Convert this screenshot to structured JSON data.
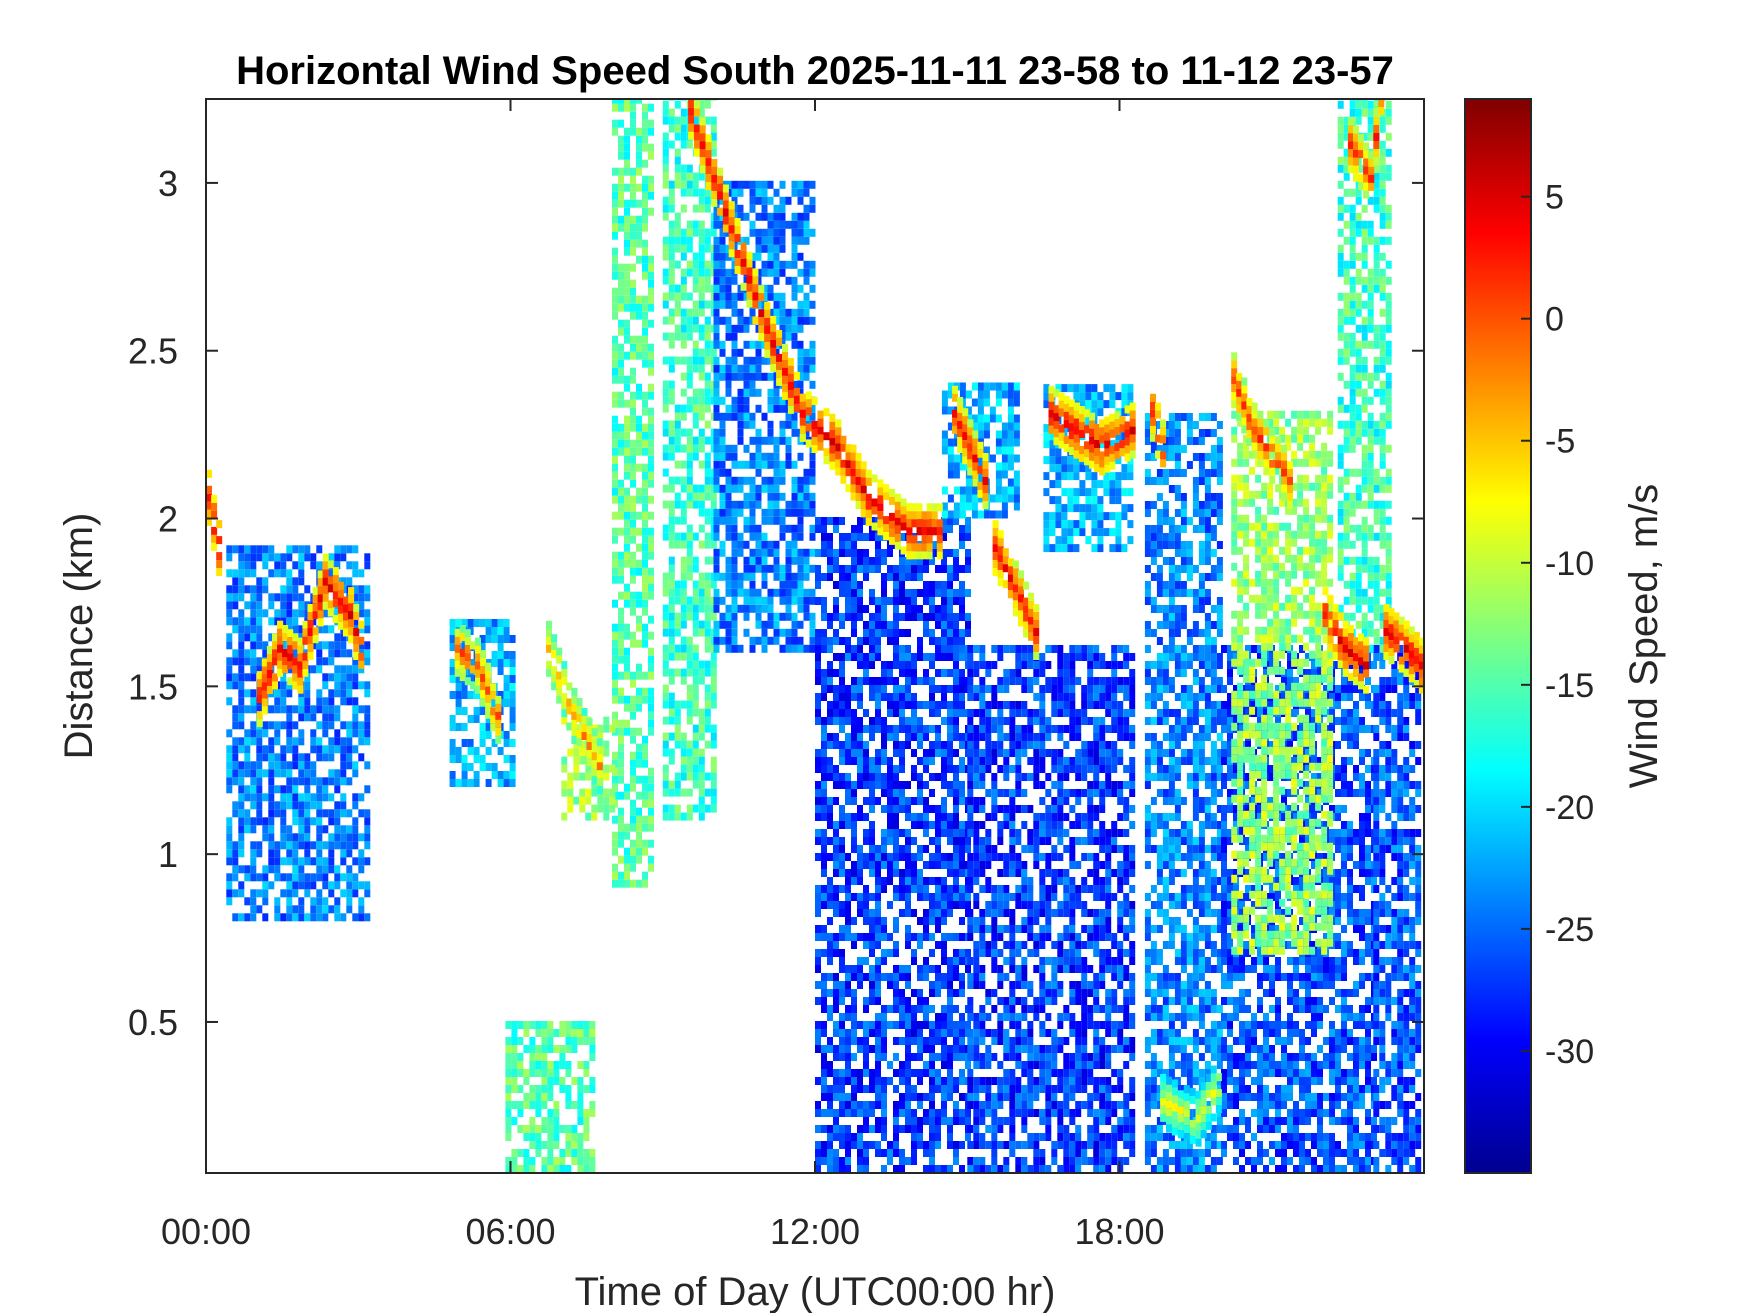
{
  "chart_data": {
    "type": "heatmap",
    "title": "Horizontal Wind Speed South 2025-11-11 23-58 to 11-12 23-57",
    "xlabel": "Time of Day (UTC00:00 hr)",
    "ylabel": "Distance (km)",
    "xlim": [
      0,
      24
    ],
    "ylim": [
      0.05,
      3.25
    ],
    "x_ticks": [
      {
        "value": 0,
        "label": "00:00"
      },
      {
        "value": 6,
        "label": "06:00"
      },
      {
        "value": 12,
        "label": "12:00"
      },
      {
        "value": 18,
        "label": "18:00"
      }
    ],
    "y_ticks": [
      {
        "value": 0.5,
        "label": "0.5"
      },
      {
        "value": 1,
        "label": "1"
      },
      {
        "value": 1.5,
        "label": "1.5"
      },
      {
        "value": 2,
        "label": "2"
      },
      {
        "value": 2.5,
        "label": "2.5"
      },
      {
        "value": 3,
        "label": "3"
      }
    ],
    "colorbar": {
      "label": "Wind Speed, m/s",
      "range": [
        -35,
        9
      ],
      "colormap": "jet",
      "ticks": [
        {
          "value": 5,
          "label": "5"
        },
        {
          "value": 0,
          "label": "0"
        },
        {
          "value": -5,
          "label": "-5"
        },
        {
          "value": -10,
          "label": "-10"
        },
        {
          "value": -15,
          "label": "-15"
        },
        {
          "value": -20,
          "label": "-20"
        },
        {
          "value": -25,
          "label": "-25"
        },
        {
          "value": -30,
          "label": "-30"
        }
      ]
    },
    "features": [
      {
        "x": [
          8.0,
          8.8
        ],
        "y": [
          0.9,
          3.25
        ],
        "v": -15
      },
      {
        "x": [
          9.0,
          10.0
        ],
        "y": [
          1.1,
          3.25
        ],
        "v": -16
      },
      {
        "x": [
          10.0,
          12.0
        ],
        "y": [
          1.6,
          3.0
        ],
        "v": -24
      },
      {
        "x": [
          12.0,
          15.0
        ],
        "y": [
          0.05,
          2.0
        ],
        "v": -27
      },
      {
        "x": [
          15.0,
          18.2
        ],
        "y": [
          0.05,
          1.6
        ],
        "v": -27
      },
      {
        "x": [
          18.5,
          20.0
        ],
        "y": [
          0.05,
          2.3
        ],
        "v": -24
      },
      {
        "x": [
          20.0,
          23.0
        ],
        "y": [
          0.05,
          1.6
        ],
        "v": -26
      },
      {
        "x": [
          20.2,
          22.2
        ],
        "y": [
          0.7,
          2.3
        ],
        "v": -12
      },
      {
        "x": [
          23.0,
          23.9
        ],
        "y": [
          0.05,
          1.6
        ],
        "v": -26
      },
      {
        "x": [
          22.3,
          23.3
        ],
        "y": [
          1.6,
          3.25
        ],
        "v": -16
      },
      {
        "x": [
          0.4,
          3.2
        ],
        "y": [
          0.8,
          1.9
        ],
        "v": -24
      },
      {
        "x": [
          4.8,
          6.0
        ],
        "y": [
          1.2,
          1.7
        ],
        "v": -22
      },
      {
        "x": [
          5.9,
          7.6
        ],
        "y": [
          0.05,
          0.5
        ],
        "v": -15
      },
      {
        "x": [
          7.0,
          8.0
        ],
        "y": [
          1.1,
          1.4
        ],
        "v": -12
      },
      {
        "x": [
          16.5,
          18.2
        ],
        "y": [
          1.9,
          2.4
        ],
        "v": -22
      },
      {
        "x": [
          14.5,
          16.0
        ],
        "y": [
          2.0,
          2.4
        ],
        "v": -22
      }
    ],
    "ridges": [
      {
        "points": [
          [
            0.0,
            2.05
          ],
          [
            0.2,
            1.9
          ]
        ],
        "v": 5
      },
      {
        "points": [
          [
            1.0,
            1.45
          ],
          [
            1.4,
            1.6
          ],
          [
            1.8,
            1.55
          ],
          [
            2.3,
            1.8
          ],
          [
            2.8,
            1.7
          ],
          [
            3.0,
            1.6
          ]
        ],
        "v": 4
      },
      {
        "points": [
          [
            4.9,
            1.6
          ],
          [
            5.3,
            1.55
          ],
          [
            5.7,
            1.4
          ]
        ],
        "v": 0
      },
      {
        "points": [
          [
            6.7,
            1.6
          ],
          [
            7.2,
            1.4
          ],
          [
            7.7,
            1.25
          ]
        ],
        "v": -3
      },
      {
        "points": [
          [
            9.5,
            3.2
          ],
          [
            10.3,
            2.85
          ],
          [
            11.0,
            2.55
          ],
          [
            11.7,
            2.3
          ],
          [
            12.4,
            2.2
          ],
          [
            13.0,
            2.05
          ],
          [
            13.8,
            1.95
          ],
          [
            14.4,
            1.95
          ]
        ],
        "v": 4
      },
      {
        "points": [
          [
            14.7,
            2.3
          ],
          [
            15.0,
            2.2
          ],
          [
            15.3,
            2.1
          ]
        ],
        "v": 3
      },
      {
        "points": [
          [
            15.5,
            1.9
          ],
          [
            16.0,
            1.75
          ],
          [
            16.3,
            1.65
          ]
        ],
        "v": 3
      },
      {
        "points": [
          [
            16.6,
            2.3
          ],
          [
            17.1,
            2.25
          ],
          [
            17.6,
            2.2
          ],
          [
            18.2,
            2.25
          ]
        ],
        "v": 4
      },
      {
        "points": [
          [
            18.6,
            2.3
          ],
          [
            18.8,
            2.2
          ]
        ],
        "v": 3
      },
      {
        "points": [
          [
            20.2,
            2.4
          ],
          [
            20.6,
            2.25
          ],
          [
            21.3,
            2.1
          ]
        ],
        "v": 1
      },
      {
        "points": [
          [
            22.0,
            1.7
          ],
          [
            22.4,
            1.6
          ],
          [
            22.8,
            1.55
          ]
        ],
        "v": 4
      },
      {
        "points": [
          [
            23.2,
            1.65
          ],
          [
            23.6,
            1.6
          ],
          [
            23.9,
            1.55
          ]
        ],
        "v": 4
      },
      {
        "points": [
          [
            22.5,
            3.1
          ],
          [
            22.9,
            3.0
          ],
          [
            23.1,
            3.25
          ]
        ],
        "v": 2
      },
      {
        "points": [
          [
            18.8,
            0.25
          ],
          [
            19.5,
            0.2
          ],
          [
            19.9,
            0.3
          ]
        ],
        "v": -8
      }
    ]
  }
}
